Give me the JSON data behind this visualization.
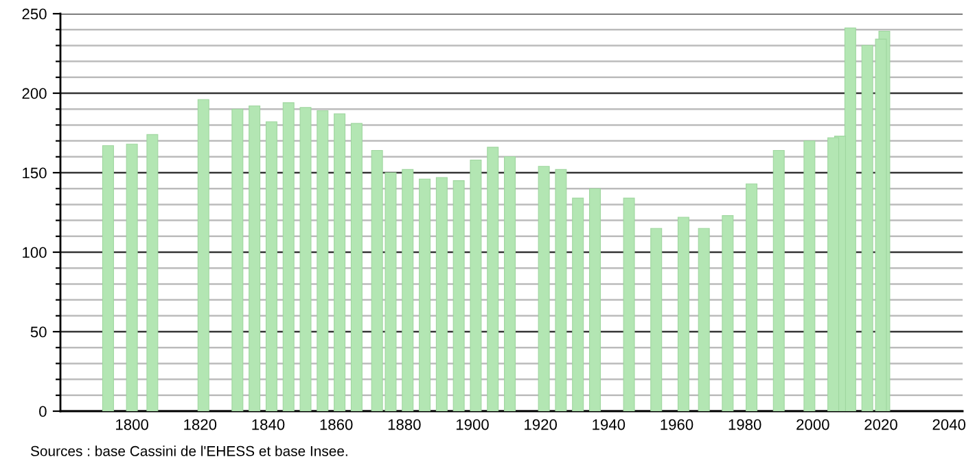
{
  "chart_data": {
    "type": "bar",
    "x": [
      1793,
      1800,
      1806,
      1821,
      1831,
      1836,
      1841,
      1846,
      1851,
      1856,
      1861,
      1866,
      1872,
      1876,
      1881,
      1886,
      1891,
      1896,
      1901,
      1906,
      1911,
      1921,
      1926,
      1931,
      1936,
      1946,
      1954,
      1962,
      1968,
      1975,
      1982,
      1990,
      1999,
      2006,
      2008,
      2011,
      2016,
      2020,
      2021
    ],
    "values": [
      167,
      168,
      174,
      196,
      190,
      192,
      182,
      194,
      191,
      189,
      187,
      181,
      164,
      150,
      152,
      146,
      147,
      145,
      158,
      166,
      160,
      154,
      152,
      134,
      140,
      134,
      115,
      122,
      115,
      123,
      143,
      164,
      170,
      172,
      173,
      241,
      230,
      234,
      239
    ],
    "color": "#b3e6b3",
    "xlim": [
      1779,
      2044
    ],
    "xticks": [
      1800,
      1820,
      1840,
      1860,
      1880,
      1900,
      1920,
      1940,
      1960,
      1980,
      2000,
      2020,
      2040
    ],
    "ylim": [
      0,
      250
    ],
    "yticks": [
      0,
      {
        "value": 10,
        "label": null
      },
      {
        "value": 20,
        "label": null
      },
      {
        "value": 30,
        "label": null
      },
      {
        "value": 40,
        "label": null
      },
      50,
      {
        "value": 60,
        "label": null
      },
      {
        "value": 70,
        "label": null
      },
      {
        "value": 80,
        "label": null
      },
      {
        "value": 90,
        "label": null
      },
      100,
      {
        "value": 110,
        "label": null
      },
      {
        "value": 120,
        "label": null
      },
      {
        "value": 130,
        "label": null
      },
      {
        "value": 140,
        "label": null
      },
      150,
      {
        "value": 160,
        "label": null
      },
      {
        "value": 170,
        "label": null
      },
      {
        "value": 180,
        "label": null
      },
      {
        "value": 190,
        "label": null
      },
      200,
      {
        "value": 210,
        "label": null
      },
      {
        "value": 220,
        "label": null
      },
      {
        "value": 230,
        "label": null
      },
      {
        "value": 240,
        "label": null
      },
      250
    ],
    "grid": "y",
    "annotations": [
      "Sources : base Cassini de l'EHESS et base Insee."
    ]
  }
}
